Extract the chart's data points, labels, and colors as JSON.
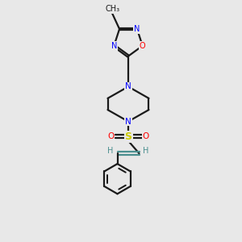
{
  "bg_color": "#e8e8e8",
  "line_color": "#1a1a1a",
  "N_color": "#0000ff",
  "O_color": "#ff0000",
  "S_color": "#cccc00",
  "vinyl_color": "#4a8f8f",
  "bond_lw": 1.6,
  "dbo": 0.04,
  "fig_w": 3.0,
  "fig_h": 3.0,
  "dpi": 100,
  "xlim": [
    0,
    10
  ],
  "ylim": [
    0,
    10
  ]
}
